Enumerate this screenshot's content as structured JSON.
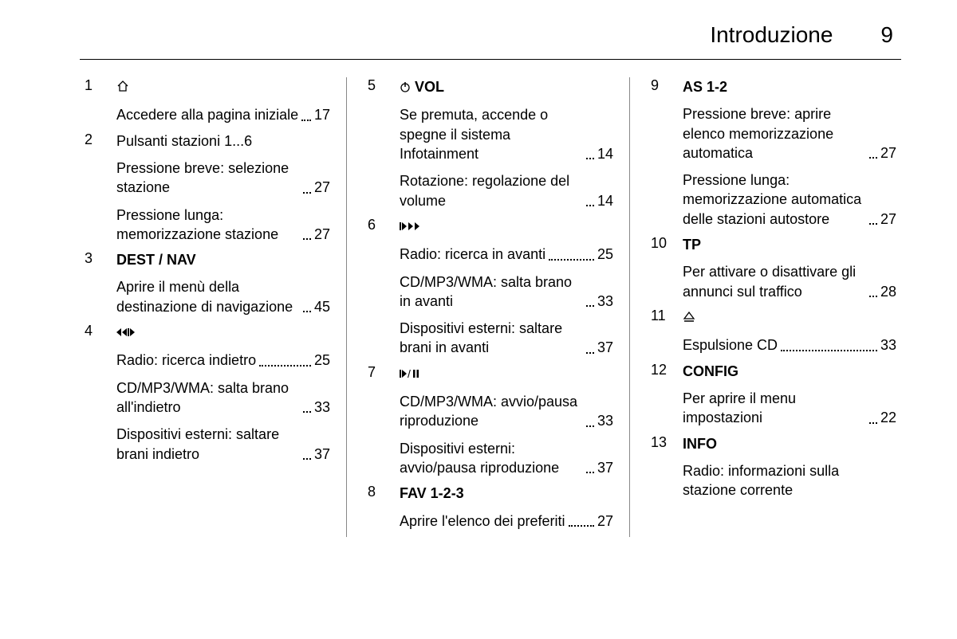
{
  "header": {
    "title": "Introduzione",
    "page_number": "9"
  },
  "columns": [
    {
      "entries": [
        {
          "num": "1",
          "title_icon": "home-icon",
          "title": "",
          "bold": false,
          "subs": [
            {
              "text": "Accedere alla pagina iniziale",
              "page": "17"
            }
          ]
        },
        {
          "num": "2",
          "title": "Pulsanti stazioni 1...6",
          "bold": false,
          "subs": [
            {
              "text": "Pressione breve: selezione stazione",
              "page": "27"
            },
            {
              "text": "Pressione lunga: memorizzazione stazione",
              "page": "27"
            }
          ]
        },
        {
          "num": "3",
          "title": "DEST / NAV",
          "bold": true,
          "subs": [
            {
              "text": "Aprire il menù della destinazione di navigazione",
              "page": "45"
            }
          ]
        },
        {
          "num": "4",
          "title_icon": "rewind-icon",
          "title": "",
          "bold": false,
          "subs": [
            {
              "text": "Radio: ricerca indietro",
              "page": "25"
            },
            {
              "text": "CD/MP3/WMA: salta brano all'indietro",
              "page": "33"
            },
            {
              "text": "Dispositivi esterni: saltare brani indietro",
              "page": "37"
            }
          ]
        }
      ]
    },
    {
      "entries": [
        {
          "num": "5",
          "title_icon": "power-icon",
          "title": "VOL",
          "bold": true,
          "subs": [
            {
              "text": "Se premuta, accende o spegne il sistema Infotainment",
              "page": "14"
            },
            {
              "text": "Rotazione: regolazione del volume",
              "page": "14"
            }
          ]
        },
        {
          "num": "6",
          "title_icon": "forward-icon",
          "title": "",
          "bold": false,
          "subs": [
            {
              "text": "Radio: ricerca in avanti",
              "page": "25"
            },
            {
              "text": "CD/MP3/WMA: salta brano in avanti",
              "page": "33"
            },
            {
              "text": "Dispositivi esterni: saltare brani in avanti",
              "page": "37"
            }
          ]
        },
        {
          "num": "7",
          "title_icon": "play-pause-icon",
          "title": "",
          "bold": false,
          "subs": [
            {
              "text": "CD/MP3/WMA: avvio/pausa riproduzione",
              "page": "33"
            },
            {
              "text": "Dispositivi esterni: avvio/pausa riproduzione",
              "page": "37"
            }
          ]
        },
        {
          "num": "8",
          "title": "FAV 1-2-3",
          "bold": true,
          "subs": [
            {
              "text": "Aprire l'elenco dei preferiti",
              "page": "27"
            }
          ]
        }
      ]
    },
    {
      "entries": [
        {
          "num": "9",
          "title": "AS 1-2",
          "bold": true,
          "subs": [
            {
              "text": "Pressione breve: aprire elenco memorizzazione automatica",
              "page": "27"
            },
            {
              "text": "Pressione lunga: memorizzazione automatica delle stazioni autostore",
              "page": "27"
            }
          ]
        },
        {
          "num": "10",
          "title": "TP",
          "bold": true,
          "subs": [
            {
              "text": "Per attivare o disattivare gli annunci sul traffico",
              "page": "28"
            }
          ]
        },
        {
          "num": "11",
          "title_icon": "eject-icon",
          "title": "",
          "bold": false,
          "subs": [
            {
              "text": "Espulsione CD",
              "page": "33"
            }
          ]
        },
        {
          "num": "12",
          "title": "CONFIG",
          "bold": true,
          "subs": [
            {
              "text": "Per aprire il menu impostazioni",
              "page": "22"
            }
          ]
        },
        {
          "num": "13",
          "title": "INFO",
          "bold": true,
          "subs": [
            {
              "text": "Radio: informazioni sulla stazione corrente",
              "page": ""
            }
          ]
        }
      ]
    }
  ],
  "icons": {
    "home-icon": "⌂",
    "rewind-icon": "rewind",
    "power-icon": "power",
    "forward-icon": "forward",
    "play-pause-icon": "playpause",
    "eject-icon": "eject"
  },
  "colors": {
    "text": "#000000",
    "background": "#ffffff",
    "divider": "#000000",
    "col_divider": "#888888"
  },
  "fonts": {
    "header_size": 28,
    "body_size": 18
  }
}
